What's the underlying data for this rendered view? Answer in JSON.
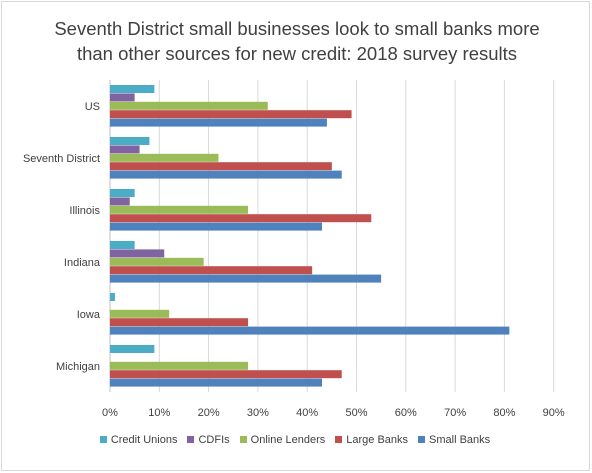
{
  "chart_data": {
    "type": "bar",
    "orientation": "horizontal",
    "title_lines": [
      "Seventh District small businesses look to small banks more",
      "than other sources for new credit: 2018 survey results"
    ],
    "categories": [
      "US",
      "Seventh District",
      "Illinois",
      "Indiana",
      "Iowa",
      "Michigan"
    ],
    "series": [
      {
        "name": "Credit Unions",
        "color": "#4bacc6",
        "values": [
          9,
          8,
          5,
          5,
          1,
          9
        ]
      },
      {
        "name": "CDFIs",
        "color": "#8064a2",
        "values": [
          5,
          6,
          4,
          11,
          0,
          0
        ]
      },
      {
        "name": "Online Lenders",
        "color": "#9bbb59",
        "values": [
          32,
          22,
          28,
          19,
          12,
          28
        ]
      },
      {
        "name": "Large Banks",
        "color": "#c0504d",
        "values": [
          49,
          45,
          53,
          41,
          28,
          47
        ]
      },
      {
        "name": "Small Banks",
        "color": "#4f81bd",
        "values": [
          44,
          47,
          43,
          55,
          81,
          43
        ]
      }
    ],
    "xlim": [
      0,
      90
    ],
    "xticks": [
      "0%",
      "10%",
      "20%",
      "30%",
      "40%",
      "50%",
      "60%",
      "70%",
      "80%",
      "90%"
    ],
    "grid": "vertical",
    "legend_position": "bottom"
  }
}
